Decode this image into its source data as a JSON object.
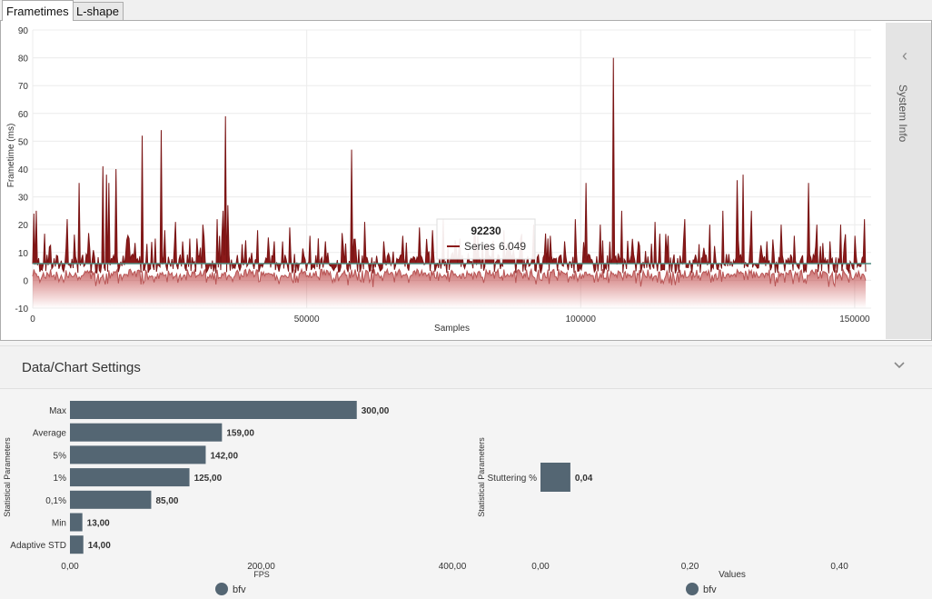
{
  "tabs": [
    {
      "label": "Frametimes",
      "active": true
    },
    {
      "label": "L-shape",
      "active": false
    }
  ],
  "frametime_chart": {
    "chart_data": {
      "type": "line",
      "title": "",
      "xlabel": "Samples",
      "ylabel": "Frametime (ms)",
      "xlim": [
        0,
        153000
      ],
      "ylim": [
        -10,
        90
      ],
      "x_ticks": [
        0,
        50000,
        100000,
        150000
      ],
      "x_tick_labels": [
        "0",
        "50000",
        "100000",
        "150000"
      ],
      "y_ticks": [
        -10,
        0,
        10,
        20,
        30,
        40,
        50,
        60,
        70,
        80,
        90
      ],
      "y_tick_labels": [
        "-10",
        "0",
        "10",
        "20",
        "30",
        "40",
        "50",
        "60",
        "70",
        "80",
        "90"
      ],
      "series": [
        {
          "name": "Series",
          "color": "#8b1a1a",
          "baseline_ms": 6.0
        }
      ],
      "spikes": [
        [
          200,
          24
        ],
        [
          700,
          25
        ],
        [
          3000,
          12
        ],
        [
          6300,
          22
        ],
        [
          8400,
          35
        ],
        [
          10200,
          17
        ],
        [
          12800,
          41
        ],
        [
          13400,
          38
        ],
        [
          13900,
          35
        ],
        [
          15200,
          40
        ],
        [
          17500,
          15
        ],
        [
          20000,
          52
        ],
        [
          22300,
          15
        ],
        [
          23500,
          54
        ],
        [
          24200,
          18
        ],
        [
          26000,
          21
        ],
        [
          28600,
          15
        ],
        [
          31000,
          20
        ],
        [
          33600,
          22
        ],
        [
          34800,
          25
        ],
        [
          35200,
          59
        ],
        [
          35600,
          27
        ],
        [
          38200,
          13
        ],
        [
          41000,
          18
        ],
        [
          44000,
          14
        ],
        [
          47000,
          19
        ],
        [
          50500,
          16
        ],
        [
          53500,
          14
        ],
        [
          56500,
          17
        ],
        [
          58200,
          47
        ],
        [
          60500,
          21
        ],
        [
          64000,
          14
        ],
        [
          67500,
          16
        ],
        [
          70500,
          19
        ],
        [
          73000,
          18
        ],
        [
          75000,
          22
        ],
        [
          78000,
          15
        ],
        [
          80500,
          17
        ],
        [
          83000,
          13
        ],
        [
          86000,
          18
        ],
        [
          89000,
          15
        ],
        [
          91500,
          20
        ],
        [
          94500,
          16
        ],
        [
          97000,
          14
        ],
        [
          99000,
          22
        ],
        [
          101000,
          35
        ],
        [
          103500,
          20
        ],
        [
          106000,
          80
        ],
        [
          107500,
          25
        ],
        [
          110500,
          14
        ],
        [
          113500,
          21
        ],
        [
          116000,
          16
        ],
        [
          119000,
          22
        ],
        [
          121500,
          13
        ],
        [
          123500,
          20
        ],
        [
          126000,
          25
        ],
        [
          128500,
          36
        ],
        [
          129600,
          38
        ],
        [
          131200,
          25
        ],
        [
          134000,
          14
        ],
        [
          136500,
          20
        ],
        [
          139000,
          16
        ],
        [
          141500,
          35
        ],
        [
          143000,
          20
        ],
        [
          145500,
          14
        ],
        [
          147500,
          20
        ],
        [
          150000,
          16
        ],
        [
          151800,
          22
        ]
      ],
      "tooltip": {
        "x_value": "92230",
        "series_name": "Series",
        "y_value": "6.049"
      }
    }
  },
  "system_info": {
    "label": "System Info"
  },
  "settings": {
    "title": "Data/Chart Settings"
  },
  "stats_left": {
    "chart_data": {
      "type": "bar",
      "orientation": "horizontal",
      "categories": [
        "Max",
        "Average",
        "5%",
        "1%",
        "0,1%",
        "Min",
        "Adaptive STD"
      ],
      "values": [
        300.0,
        159.0,
        142.0,
        125.0,
        85.0,
        13.0,
        14.0
      ],
      "value_labels": [
        "300,00",
        "159,00",
        "142,00",
        "125,00",
        "85,00",
        "13,00",
        "14,00"
      ],
      "xlabel": "FPS",
      "ylabel": "Statistical Parameters",
      "xlim": [
        0,
        400
      ],
      "x_ticks": [
        0,
        200,
        400
      ],
      "x_tick_labels": [
        "0,00",
        "200,00",
        "400,00"
      ],
      "legend": "bfv",
      "color": "#546673"
    }
  },
  "stats_right": {
    "chart_data": {
      "type": "bar",
      "orientation": "horizontal",
      "categories": [
        "Stuttering %"
      ],
      "values": [
        0.04
      ],
      "value_labels": [
        "0,04"
      ],
      "xlabel": "Values",
      "ylabel": "Statistical Parameters",
      "xlim": [
        0,
        0.44
      ],
      "x_ticks": [
        0,
        0.2,
        0.4
      ],
      "x_tick_labels": [
        "0,00",
        "0,20",
        "0,40"
      ],
      "legend": "bfv",
      "color": "#546673"
    }
  }
}
